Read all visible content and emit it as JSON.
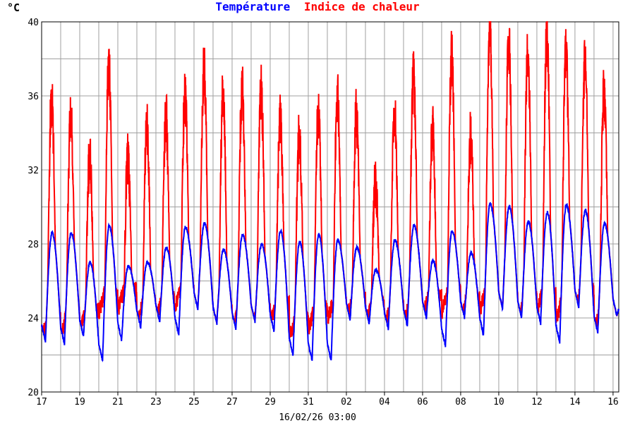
{
  "chart_data": {
    "type": "line",
    "unit_label": "°C",
    "legend": [
      {
        "name": "Température",
        "color": "#0000ff"
      },
      {
        "name": "Indice de chaleur",
        "color": "#ff0000"
      }
    ],
    "timestamp": "16/02/26 03:00",
    "ylim": [
      20,
      40
    ],
    "y_ticks": [
      "20",
      "24",
      "28",
      "32",
      "36",
      "40"
    ],
    "x_ticks": [
      "17",
      "19",
      "21",
      "23",
      "25",
      "27",
      "29",
      "31",
      "02",
      "04",
      "06",
      "08",
      "10",
      "12",
      "14",
      "16"
    ],
    "x_range_days": [
      0,
      30.3
    ],
    "grid": true,
    "daily": [
      {
        "day": 0,
        "min_temp": 22.7,
        "max_temp": 28.6,
        "max_hi": 35.4,
        "eve_hi": 24.0
      },
      {
        "day": 1,
        "min_temp": 22.6,
        "max_temp": 28.6,
        "max_hi": 34.4,
        "eve_hi": 24.2
      },
      {
        "day": 2,
        "min_temp": 23.0,
        "max_temp": 27.0,
        "max_hi": 32.2,
        "eve_hi": 24.4
      },
      {
        "day": 3,
        "min_temp": 21.7,
        "max_temp": 29.0,
        "max_hi": 37.2,
        "eve_hi": 25.4
      },
      {
        "day": 4,
        "min_temp": 22.8,
        "max_temp": 26.8,
        "max_hi": 32.1,
        "eve_hi": 25.5
      },
      {
        "day": 5,
        "min_temp": 23.5,
        "max_temp": 27.0,
        "max_hi": 34.0,
        "eve_hi": 24.8
      },
      {
        "day": 6,
        "min_temp": 23.8,
        "max_temp": 27.8,
        "max_hi": 34.4,
        "eve_hi": 25.0
      },
      {
        "day": 7,
        "min_temp": 23.1,
        "max_temp": 28.9,
        "max_hi": 35.6,
        "eve_hi": 25.6
      },
      {
        "day": 8,
        "min_temp": 24.5,
        "max_temp": 29.1,
        "max_hi": 37.0,
        "eve_hi": 24.6
      },
      {
        "day": 9,
        "min_temp": 23.7,
        "max_temp": 27.7,
        "max_hi": 35.5,
        "eve_hi": 24.3
      },
      {
        "day": 10,
        "min_temp": 23.4,
        "max_temp": 28.5,
        "max_hi": 35.9,
        "eve_hi": 24.6
      },
      {
        "day": 11,
        "min_temp": 23.8,
        "max_temp": 28.0,
        "max_hi": 35.9,
        "eve_hi": 24.4
      },
      {
        "day": 12,
        "min_temp": 23.3,
        "max_temp": 28.7,
        "max_hi": 34.1,
        "eve_hi": 24.8
      },
      {
        "day": 13,
        "min_temp": 22.0,
        "max_temp": 28.1,
        "max_hi": 33.4,
        "eve_hi": 24.0
      },
      {
        "day": 14,
        "min_temp": 21.7,
        "max_temp": 28.5,
        "max_hi": 34.5,
        "eve_hi": 24.5
      },
      {
        "day": 15,
        "min_temp": 21.7,
        "max_temp": 28.2,
        "max_hi": 35.6,
        "eve_hi": 25.0
      },
      {
        "day": 16,
        "min_temp": 23.9,
        "max_temp": 27.8,
        "max_hi": 34.5,
        "eve_hi": 25.0
      },
      {
        "day": 17,
        "min_temp": 23.7,
        "max_temp": 26.6,
        "max_hi": 30.7,
        "eve_hi": 24.8
      },
      {
        "day": 18,
        "min_temp": 23.4,
        "max_temp": 28.2,
        "max_hi": 34.5,
        "eve_hi": 24.6
      },
      {
        "day": 19,
        "min_temp": 23.6,
        "max_temp": 29.0,
        "max_hi": 36.5,
        "eve_hi": 24.8
      },
      {
        "day": 20,
        "min_temp": 24.0,
        "max_temp": 27.1,
        "max_hi": 33.7,
        "eve_hi": 25.2
      },
      {
        "day": 21,
        "min_temp": 22.5,
        "max_temp": 28.7,
        "max_hi": 37.7,
        "eve_hi": 25.4
      },
      {
        "day": 22,
        "min_temp": 24.0,
        "max_temp": 27.5,
        "max_hi": 33.2,
        "eve_hi": 25.0
      },
      {
        "day": 23,
        "min_temp": 23.1,
        "max_temp": 30.2,
        "max_hi": 39.3,
        "eve_hi": 25.5
      },
      {
        "day": 24,
        "min_temp": 24.5,
        "max_temp": 30.0,
        "max_hi": 38.5,
        "eve_hi": 25.0
      },
      {
        "day": 25,
        "min_temp": 24.0,
        "max_temp": 29.2,
        "max_hi": 38.0,
        "eve_hi": 25.0
      },
      {
        "day": 26,
        "min_temp": 23.7,
        "max_temp": 29.7,
        "max_hi": 39.0,
        "eve_hi": 25.5
      },
      {
        "day": 27,
        "min_temp": 22.7,
        "max_temp": 30.1,
        "max_hi": 37.8,
        "eve_hi": 25.0
      },
      {
        "day": 28,
        "min_temp": 24.6,
        "max_temp": 29.8,
        "max_hi": 37.2,
        "eve_hi": 25.5
      },
      {
        "day": 29,
        "min_temp": 23.2,
        "max_temp": 29.1,
        "max_hi": 35.7,
        "eve_hi": 24.4
      },
      {
        "day": 30,
        "min_temp": 24.1,
        "max_temp": 25.0,
        "max_hi": 26.0,
        "eve_hi": 24.3
      }
    ],
    "series": [
      {
        "name": "Température",
        "color": "#0000ff"
      },
      {
        "name": "Indice de chaleur",
        "color": "#ff0000"
      }
    ]
  }
}
